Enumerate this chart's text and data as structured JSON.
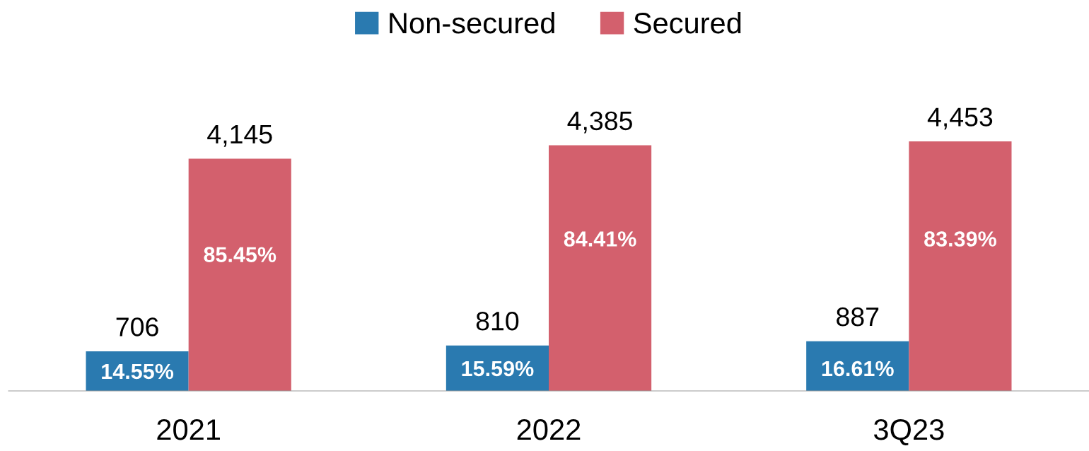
{
  "chart_data": {
    "type": "bar",
    "categories": [
      "2021",
      "2022",
      "3Q23"
    ],
    "series": [
      {
        "name": "Non-secured",
        "color": "#2a7ab0",
        "values": [
          706,
          810,
          887
        ],
        "value_labels": [
          "706",
          "810",
          "887"
        ]
      },
      {
        "name": "Secured",
        "color": "#d3606d",
        "values": [
          4145,
          4385,
          4453
        ],
        "value_labels": [
          "4,145",
          "4,385",
          "4,453"
        ]
      }
    ],
    "legend": "top",
    "grid": false,
    "annotations": [
      {
        "text": "14.55%",
        "x": "2021",
        "y": 315
      },
      {
        "text": "15.59%",
        "x": "2022",
        "y": 365
      },
      {
        "text": "16.61%",
        "x": "3Q23",
        "y": 365
      },
      {
        "text": "85.45%",
        "x": "2021",
        "y": 2400
      },
      {
        "text": "84.41%",
        "x": "2022",
        "y": 2680
      },
      {
        "text": "83.39%",
        "x": "3Q23",
        "y": 2680
      }
    ]
  }
}
